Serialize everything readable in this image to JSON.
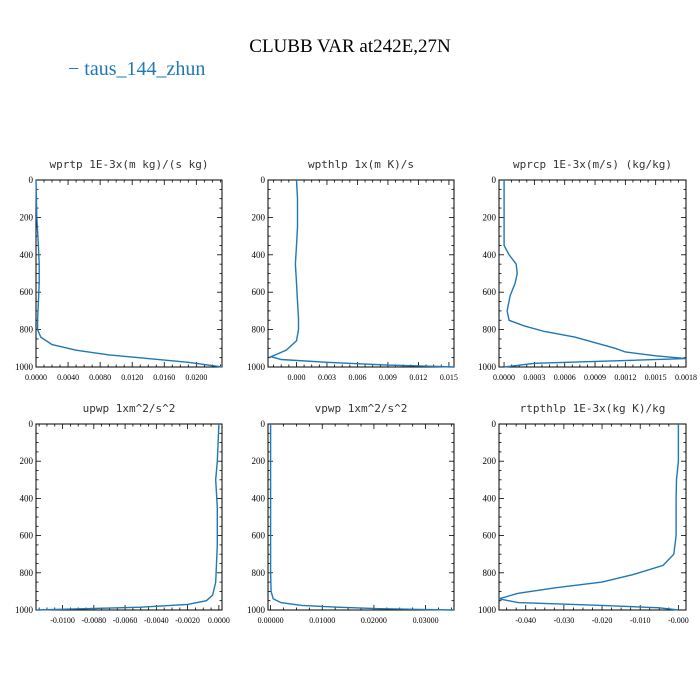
{
  "title": "CLUBB VAR at242E,27N",
  "legend": {
    "label": "taus_144_zhun",
    "color": "#1f77b4"
  },
  "chart_data": [
    {
      "type": "line",
      "title": "wprtp  1E-3x(m kg)/(s kg)",
      "xlim": [
        0,
        0.0232
      ],
      "ylim": [
        0,
        1000
      ],
      "y_inverted": true,
      "xticks": [
        0,
        0.004,
        0.008,
        0.012,
        0.016,
        0.02
      ],
      "xtick_labels": [
        "0.0000",
        "0.0040",
        "0.0080",
        "0.0120",
        "0.0160",
        "0.0200"
      ],
      "yticks": [
        0,
        200,
        400,
        600,
        800,
        1000
      ],
      "series": [
        {
          "x": [
            0.0,
            0.0001,
            0.0003,
            0.0004,
            0.0004,
            0.0003,
            0.0002,
            0.0002,
            0.0006,
            0.002,
            0.005,
            0.009,
            0.014,
            0.019,
            0.0215,
            0.0232
          ],
          "y": [
            0,
            200,
            350,
            450,
            550,
            650,
            750,
            800,
            840,
            880,
            910,
            935,
            955,
            975,
            990,
            1000
          ]
        }
      ]
    },
    {
      "type": "line",
      "title": "wpthlp  1x(m K)/s",
      "xlim": [
        -0.0028,
        0.0155
      ],
      "ylim": [
        0,
        1000
      ],
      "y_inverted": true,
      "xticks": [
        0,
        0.003,
        0.006,
        0.009,
        0.012,
        0.015
      ],
      "xtick_labels": [
        "0.000",
        "0.003",
        "0.006",
        "0.009",
        "0.012",
        "0.015"
      ],
      "yticks": [
        0,
        200,
        400,
        600,
        800,
        1000
      ],
      "series": [
        {
          "x": [
            0.0,
            0.0001,
            0.0001,
            0.0,
            -0.0001,
            0.0,
            0.0001,
            0.0002,
            0.0002,
            0.0,
            -0.001,
            -0.0025,
            -0.0015,
            0.003,
            0.009,
            0.0155
          ],
          "y": [
            0,
            100,
            250,
            350,
            450,
            550,
            650,
            740,
            800,
            860,
            910,
            945,
            960,
            975,
            990,
            1000
          ]
        }
      ]
    },
    {
      "type": "line",
      "title": "wprcp  1E-3x(m/s) (kg/kg)",
      "xlim": [
        -5e-05,
        0.0018
      ],
      "ylim": [
        0,
        1000
      ],
      "y_inverted": true,
      "xticks": [
        0,
        0.0003,
        0.0006,
        0.0009,
        0.0012,
        0.0015,
        0.0018
      ],
      "xtick_labels": [
        "0.0000",
        "0.0003",
        "0.0006",
        "0.0009",
        "0.0012",
        "0.0015",
        "0.0018"
      ],
      "yticks": [
        0,
        200,
        400,
        600,
        800,
        1000
      ],
      "series": [
        {
          "x": [
            0.0,
            0.0,
            5e-05,
            0.00012,
            0.00013,
            0.00011,
            6e-05,
            3e-05,
            5e-05,
            0.0002,
            0.0004,
            0.0007,
            0.0009,
            0.0011,
            0.0012,
            0.0015,
            0.0018,
            0.0003,
            0.0
          ],
          "y": [
            0,
            350,
            400,
            450,
            500,
            550,
            620,
            700,
            750,
            780,
            810,
            840,
            870,
            900,
            920,
            940,
            955,
            980,
            1000
          ]
        }
      ]
    },
    {
      "type": "line",
      "title": "upwp  1xm^2/s^2",
      "xlim": [
        -0.0117,
        0.0002
      ],
      "ylim": [
        0,
        1000
      ],
      "y_inverted": true,
      "xticks": [
        -0.01,
        -0.008,
        -0.006,
        -0.004,
        -0.002,
        0
      ],
      "xtick_labels": [
        "-0.0100",
        "-0.0080",
        "-0.0060",
        "-0.0040",
        "-0.0020",
        "0.0000"
      ],
      "yticks": [
        0,
        200,
        400,
        600,
        800,
        1000
      ],
      "series": [
        {
          "x": [
            0.0,
            -0.0001,
            -0.0002,
            -0.0001,
            -0.0001,
            -0.0002,
            -0.0004,
            -0.0008,
            -0.002,
            -0.005,
            -0.0117
          ],
          "y": [
            0,
            200,
            300,
            450,
            650,
            850,
            920,
            950,
            970,
            985,
            1000
          ]
        }
      ]
    },
    {
      "type": "line",
      "title": "vpwp  1xm^2/s^2",
      "xlim": [
        -0.0005,
        0.0355
      ],
      "ylim": [
        0,
        1000
      ],
      "y_inverted": true,
      "xticks": [
        0,
        0.01,
        0.02,
        0.03
      ],
      "xtick_labels": [
        "0.00000",
        "0.01000",
        "0.02000",
        "0.03000"
      ],
      "yticks": [
        0,
        200,
        400,
        600,
        800,
        1000
      ],
      "series": [
        {
          "x": [
            0.0,
            0.0,
            0.0001,
            0.0005,
            0.002,
            0.006,
            0.013,
            0.021,
            0.029,
            0.0355
          ],
          "y": [
            0,
            800,
            900,
            940,
            960,
            975,
            985,
            993,
            997,
            1000
          ]
        }
      ]
    },
    {
      "type": "line",
      "title": "rtpthlp  1E-3x(kg K)/kg",
      "xlim": [
        -0.047,
        0.002
      ],
      "ylim": [
        0,
        1000
      ],
      "y_inverted": true,
      "xticks": [
        -0.04,
        -0.03,
        -0.02,
        -0.01,
        0
      ],
      "xtick_labels": [
        "-0.040",
        "-0.030",
        "-0.020",
        "-0.010",
        "-0.000"
      ],
      "yticks": [
        0,
        200,
        400,
        600,
        800,
        1000
      ],
      "series": [
        {
          "x": [
            0.0,
            0.0,
            -0.0005,
            -0.0006,
            -0.0006,
            -0.0006,
            -0.0012,
            -0.004,
            -0.012,
            -0.02,
            -0.032,
            -0.042,
            -0.047,
            -0.042,
            -0.02,
            -0.005,
            0.0
          ],
          "y": [
            0,
            200,
            300,
            400,
            500,
            600,
            700,
            760,
            810,
            850,
            880,
            910,
            940,
            960,
            975,
            988,
            1000
          ]
        }
      ]
    }
  ]
}
